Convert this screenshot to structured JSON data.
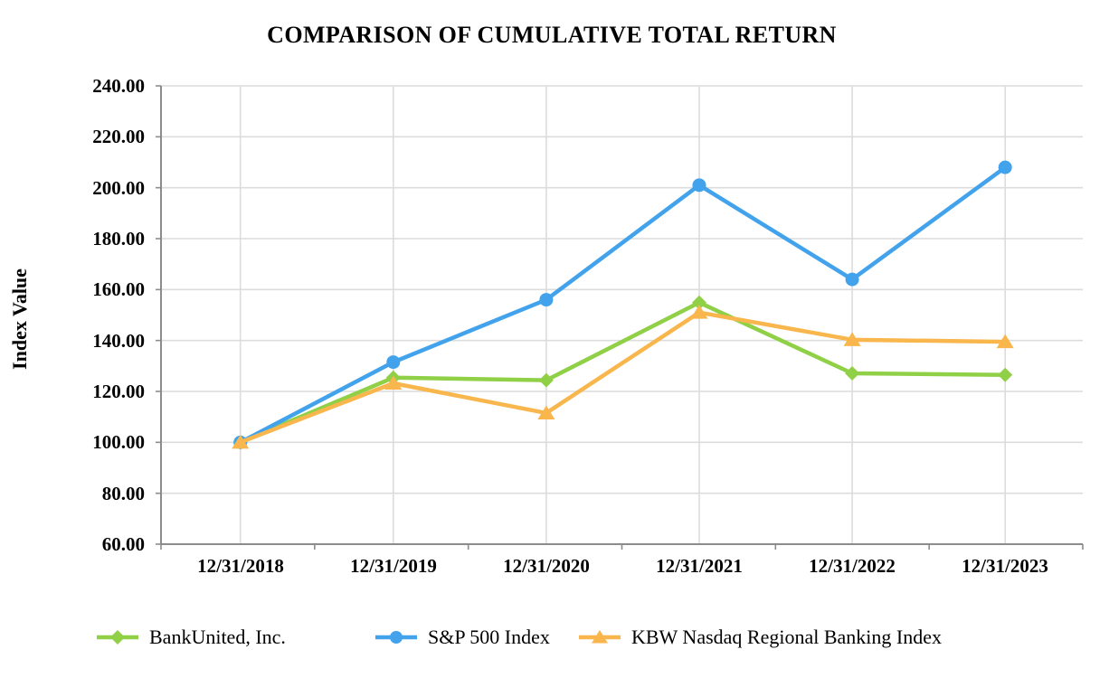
{
  "title": "COMPARISON OF CUMULATIVE TOTAL RETURN",
  "chart_data": {
    "type": "line",
    "title": "COMPARISON OF CUMULATIVE TOTAL RETURN",
    "xlabel": "",
    "ylabel": "Index Value",
    "ylim": [
      60,
      240
    ],
    "ytick_step": 20,
    "grid": true,
    "legend_position": "bottom",
    "categories": [
      "12/31/2018",
      "12/31/2019",
      "12/31/2020",
      "12/31/2021",
      "12/31/2022",
      "12/31/2023"
    ],
    "y_tick_labels": [
      "240.00",
      "220.00",
      "200.00",
      "180.00",
      "160.00",
      "140.00",
      "120.00",
      "100.00",
      "80.00",
      "60.00"
    ],
    "series": [
      {
        "name": "BankUnited, Inc.",
        "marker": "diamond",
        "color": "#8FD047",
        "values": [
          100.0,
          125.4,
          124.4,
          154.9,
          127.1,
          126.5
        ]
      },
      {
        "name": "S&P 500 Index",
        "marker": "circle",
        "color": "#42A3EC",
        "values": [
          100.0,
          131.5,
          156.0,
          201.0,
          164.0,
          208.0
        ]
      },
      {
        "name": "KBW Nasdaq Regional Banking Index",
        "marker": "triangle",
        "color": "#F8B64C",
        "values": [
          100.0,
          123.2,
          111.5,
          151.0,
          140.3,
          139.5
        ]
      }
    ]
  },
  "colors": {
    "background": "#FFFFFF",
    "gridline": "#DCDCDC",
    "axis": "#8C8C8C",
    "text": "#000000"
  }
}
